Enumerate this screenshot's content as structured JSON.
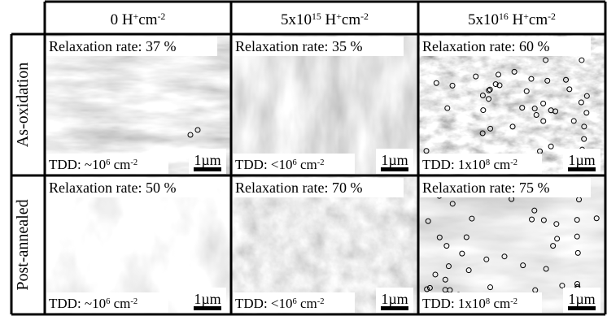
{
  "columns": [
    [
      {
        "text": "0 H"
      },
      {
        "sup": "+"
      },
      {
        "text": "cm"
      },
      {
        "sup": "-2"
      }
    ],
    [
      {
        "text": "5x10"
      },
      {
        "sup": "15"
      },
      {
        "text": " H"
      },
      {
        "sup": "+"
      },
      {
        "text": "cm"
      },
      {
        "sup": "-2"
      }
    ],
    [
      {
        "text": "5x10"
      },
      {
        "sup": "16"
      },
      {
        "text": " H"
      },
      {
        "sup": "+"
      },
      {
        "text": "cm"
      },
      {
        "sup": "-2"
      }
    ]
  ],
  "rows": [
    {
      "label": "As-oxidation",
      "cells": [
        {
          "relaxation": "Relaxation rate: 37 %",
          "tdd": [
            {
              "text": "TDD: ~10"
            },
            {
              "sup": "6"
            },
            {
              "text": " cm"
            },
            {
              "sup": "-2"
            }
          ],
          "scale": "1µm"
        },
        {
          "relaxation": "Relaxation rate: 35 %",
          "tdd": [
            {
              "text": "TDD: <10"
            },
            {
              "sup": "6"
            },
            {
              "text": " cm"
            },
            {
              "sup": "-2"
            }
          ],
          "scale": "1µm"
        },
        {
          "relaxation": "Relaxation rate: 60 %",
          "tdd": [
            {
              "text": "TDD: 1x10"
            },
            {
              "sup": "8"
            },
            {
              "text": " cm"
            },
            {
              "sup": "-2"
            }
          ],
          "scale": "1µm"
        }
      ]
    },
    {
      "label": "Post-annealed",
      "cells": [
        {
          "relaxation": "Relaxation rate: 50 %",
          "tdd": [
            {
              "text": "TDD: ~10"
            },
            {
              "sup": "6"
            },
            {
              "text": " cm"
            },
            {
              "sup": "-2"
            }
          ],
          "scale": "1µm"
        },
        {
          "relaxation": "Relaxation rate: 70 %",
          "tdd": [
            {
              "text": "TDD: <10"
            },
            {
              "sup": "6"
            },
            {
              "text": " cm"
            },
            {
              "sup": "-2"
            }
          ],
          "scale": "1µm"
        },
        {
          "relaxation": "Relaxation rate: 75 %",
          "tdd": [
            {
              "text": "TDD: 1x10"
            },
            {
              "sup": "8"
            },
            {
              "text": " cm"
            },
            {
              "sup": "-2"
            }
          ],
          "scale": "1µm"
        }
      ]
    }
  ]
}
